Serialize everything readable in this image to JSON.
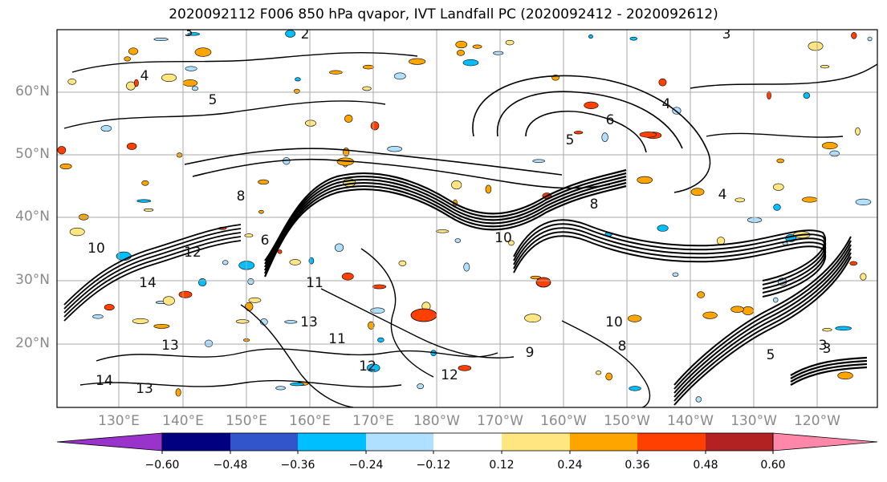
{
  "title": "2020092112 F006 850 hPa qvapor, IVT Landfall PC (2020092412 - 2020092612)",
  "lat_labels": [
    "60°N",
    "50°N",
    "40°N",
    "30°N",
    "20°N"
  ],
  "lon_labels": [
    "130°E",
    "140°E",
    "150°E",
    "160°E",
    "170°E",
    "180°W",
    "170°W",
    "160°W",
    "150°W",
    "140°W",
    "130°W",
    "120°W"
  ],
  "colorbar": {
    "colors": [
      "#9933cc",
      "#000080",
      "#3355cc",
      "#00bfff",
      "#b0e0ff",
      "#ffffff",
      "#ffe680",
      "#ffa500",
      "#ff4000",
      "#b22222",
      "#ff88aa"
    ],
    "ticks": [
      "−0.60",
      "−0.48",
      "−0.36",
      "−0.24",
      "−0.12",
      "0.12",
      "0.24",
      "0.36",
      "0.48",
      "0.60"
    ]
  },
  "contour_labels": [
    "3",
    "2",
    "3",
    "4",
    "5",
    "6",
    "8",
    "10",
    "11",
    "12",
    "13",
    "14",
    "13",
    "12",
    "11",
    "10",
    "9",
    "8",
    "6",
    "5",
    "4",
    "3",
    "14",
    "13",
    "12",
    "10",
    "8",
    "5",
    "3",
    "4"
  ]
}
